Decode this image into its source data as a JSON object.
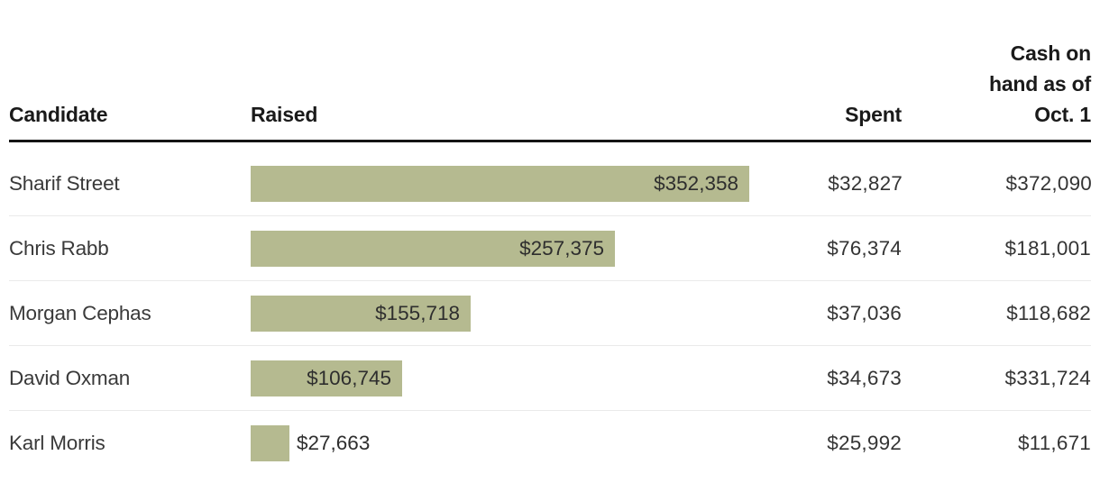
{
  "colors": {
    "bar_fill": "#b5ba90",
    "header_rule": "#141414",
    "row_separator": "#eaeaea",
    "header_text": "#1a1a1a",
    "body_text": "#343434",
    "background": "#ffffff"
  },
  "table": {
    "headers": {
      "candidate": "Candidate",
      "raised": "Raised",
      "spent": "Spent",
      "cash": "Cash on\nhand as of\nOct. 1"
    },
    "rows": [
      {
        "candidate": "Sharif Street",
        "raised": "$352,358",
        "spent": "$32,827",
        "cash": "$372,090"
      },
      {
        "candidate": "Chris Rabb",
        "raised": "$257,375",
        "spent": "$76,374",
        "cash": "$181,001"
      },
      {
        "candidate": "Morgan Cephas",
        "raised": "$155,718",
        "spent": "$37,036",
        "cash": "$118,682"
      },
      {
        "candidate": "David Oxman",
        "raised": "$106,745",
        "spent": "$34,673",
        "cash": "$331,724"
      },
      {
        "candidate": "Karl Morris",
        "raised": "$27,663",
        "spent": "$25,992",
        "cash": "$11,671"
      }
    ]
  },
  "chart_data": {
    "type": "bar",
    "orientation": "horizontal",
    "title": "",
    "categories": [
      "Sharif Street",
      "Chris Rabb",
      "Morgan Cephas",
      "David Oxman",
      "Karl Morris"
    ],
    "series": [
      {
        "name": "Raised",
        "values": [
          352358,
          257375,
          155718,
          106745,
          27663
        ]
      },
      {
        "name": "Spent",
        "values": [
          32827,
          76374,
          37036,
          34673,
          25992
        ]
      },
      {
        "name": "Cash on hand as of Oct. 1",
        "values": [
          372090,
          181001,
          118682,
          331724,
          11671
        ]
      }
    ],
    "bar_series": "Raised",
    "xlim": [
      0,
      352358
    ],
    "bar_color": "#b5ba90",
    "value_format": "$#,###",
    "grid": false,
    "legend": false
  }
}
